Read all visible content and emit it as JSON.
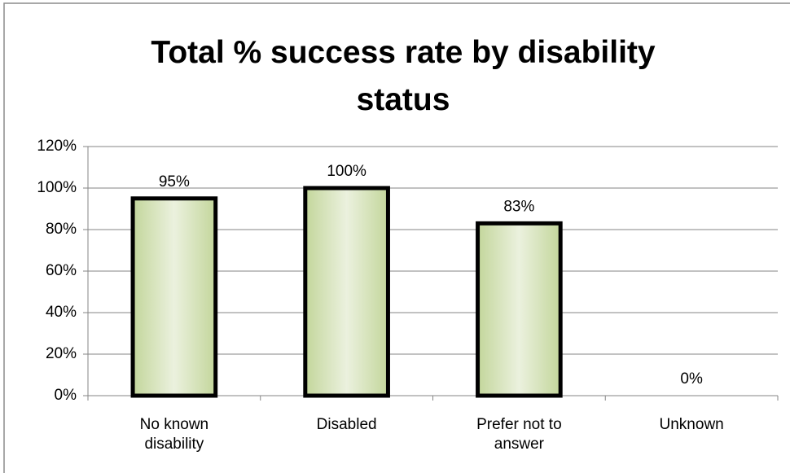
{
  "chart_data": {
    "type": "bar",
    "title": "Total % success rate by disability status",
    "categories": [
      "No known disability",
      "Disabled",
      "Prefer not to answer",
      "Unknown"
    ],
    "values": [
      95,
      100,
      83,
      0
    ],
    "value_labels": [
      "95%",
      "100%",
      "83%",
      "0%"
    ],
    "color": "#d7e4bd",
    "ylim": [
      0,
      120
    ],
    "yticks": [
      {
        "value": 0,
        "label": "0%"
      },
      {
        "value": 20,
        "label": "20%"
      },
      {
        "value": 40,
        "label": "40%"
      },
      {
        "value": 60,
        "label": "60%"
      },
      {
        "value": 80,
        "label": "80%"
      },
      {
        "value": 100,
        "label": "100%"
      },
      {
        "value": 120,
        "label": "120%"
      }
    ],
    "grid": true
  }
}
